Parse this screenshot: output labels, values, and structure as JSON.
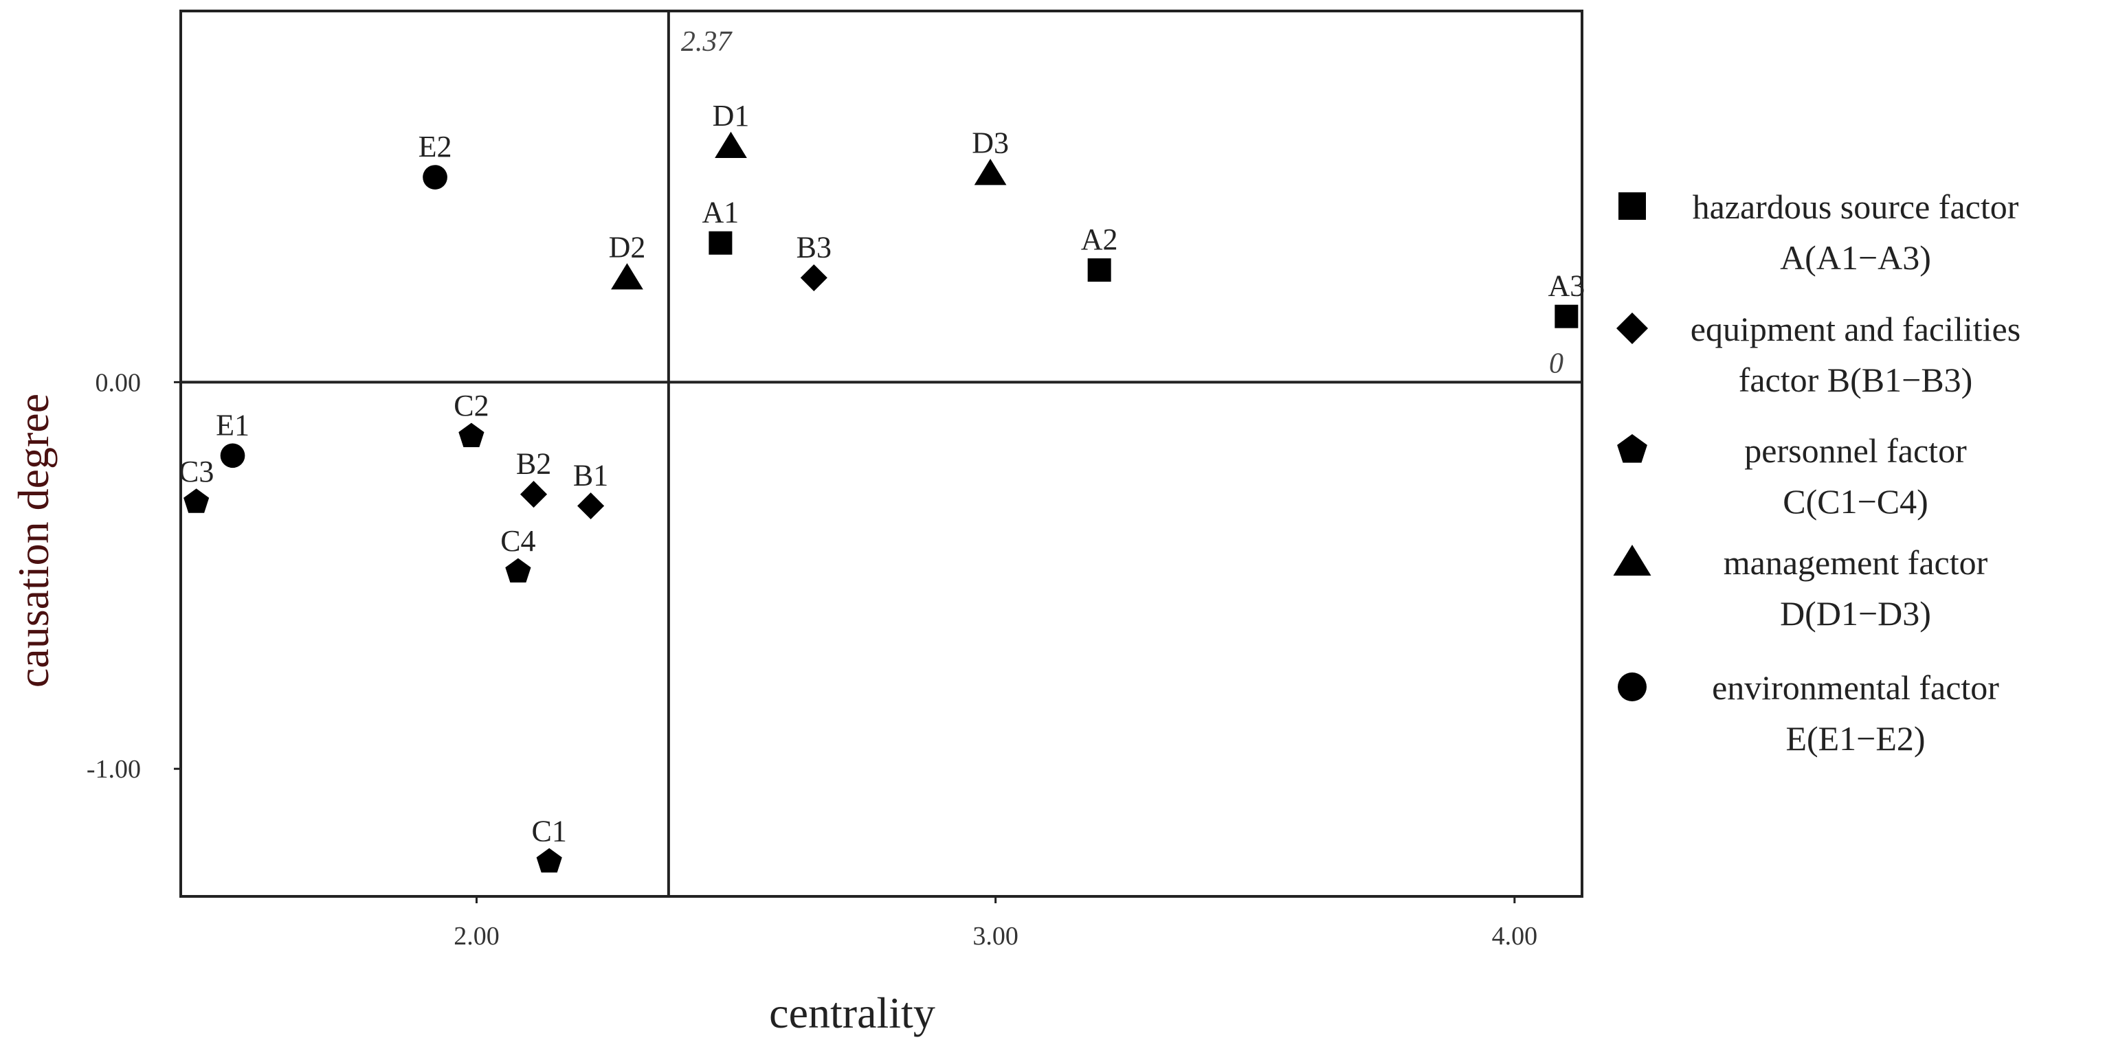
{
  "chart_data": {
    "type": "scatter",
    "title": "",
    "xlabel": "centrality",
    "ylabel": "causation degree",
    "xlim": [
      1.43,
      4.13
    ],
    "ylim": [
      -1.33,
      0.96
    ],
    "x_ticks": [
      {
        "value": 2.0,
        "label": "2.00"
      },
      {
        "value": 3.0,
        "label": "3.00"
      },
      {
        "value": 4.0,
        "label": "4.00"
      }
    ],
    "y_ticks": [
      {
        "value": 0.0,
        "label": "0.00"
      },
      {
        "value": -1.0,
        "label": "-1.00"
      }
    ],
    "grid": false,
    "reference_lines": {
      "x": 2.37,
      "x_label": "2.37",
      "y": 0.0,
      "y_label": "0"
    },
    "legend_position": "right",
    "series": [
      {
        "name": "hazardous source factor A(A1−A3)",
        "legend_lines": [
          "hazardous source factor",
          "A(A1−A3)"
        ],
        "marker": "square",
        "points": [
          {
            "label": "A1",
            "x": 2.47,
            "y": 0.36
          },
          {
            "label": "A2",
            "x": 3.2,
            "y": 0.29
          },
          {
            "label": "A3",
            "x": 4.1,
            "y": 0.17
          }
        ]
      },
      {
        "name": "equipment and facilities factor B(B1−B3)",
        "legend_lines": [
          "equipment and facilities",
          "factor B(B1−B3)"
        ],
        "marker": "diamond",
        "points": [
          {
            "label": "B1",
            "x": 2.22,
            "y": -0.32
          },
          {
            "label": "B2",
            "x": 2.11,
            "y": -0.29
          },
          {
            "label": "B3",
            "x": 2.65,
            "y": 0.27
          }
        ]
      },
      {
        "name": "personnel factor C(C1−C4)",
        "legend_lines": [
          "personnel factor",
          "C(C1−C4)"
        ],
        "marker": "pentagon",
        "points": [
          {
            "label": "C1",
            "x": 2.14,
            "y": -1.24
          },
          {
            "label": "C2",
            "x": 1.99,
            "y": -0.14
          },
          {
            "label": "C3",
            "x": 1.46,
            "y": -0.31
          },
          {
            "label": "C4",
            "x": 2.08,
            "y": -0.49
          }
        ]
      },
      {
        "name": "management factor D(D1−D3)",
        "legend_lines": [
          "management factor",
          "D(D1−D3)"
        ],
        "marker": "triangle",
        "points": [
          {
            "label": "D1",
            "x": 2.49,
            "y": 0.61
          },
          {
            "label": "D2",
            "x": 2.29,
            "y": 0.27
          },
          {
            "label": "D3",
            "x": 2.99,
            "y": 0.54
          }
        ]
      },
      {
        "name": "environmental factor E(E1−E2)",
        "legend_lines": [
          "environmental factor",
          "E(E1−E2)"
        ],
        "marker": "circle",
        "points": [
          {
            "label": "E1",
            "x": 1.53,
            "y": -0.19
          },
          {
            "label": "E2",
            "x": 1.92,
            "y": 0.53
          }
        ]
      }
    ]
  }
}
